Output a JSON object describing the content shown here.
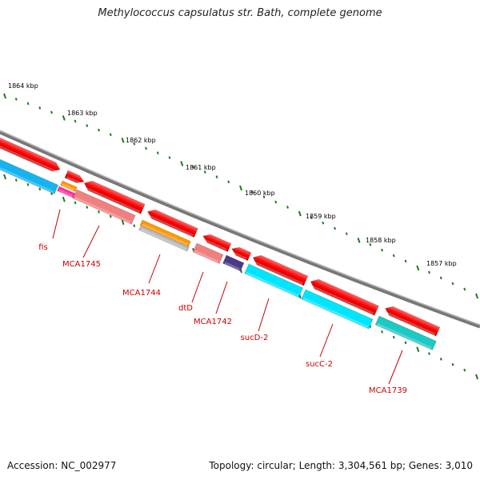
{
  "title": "Methylococcus capsulatus str. Bath, complete genome",
  "footer": {
    "accession": "Accession: NC_002977",
    "summary": "Topology: circular; Length: 3,304,561 bp; Genes: 3,010"
  },
  "colors": {
    "backbone": "#8c8c8c",
    "tick": "#1e7a1e",
    "tick_label": "#000000",
    "gene_label": "#cc0000",
    "leader": "#cc0000"
  },
  "ticks": [
    "1864 kbp",
    "1863 kbp",
    "1862 kbp",
    "1861 kbp",
    "1860 kbp",
    "1859 kbp",
    "1858 kbp",
    "1857 kbp"
  ],
  "gene_labels": [
    "fis",
    "MCA1745",
    "MCA1744",
    "dtD",
    "MCA1742",
    "sucD-2",
    "sucC-2",
    "MCA1739"
  ],
  "tracks": {
    "cds": {
      "name": "CDS track",
      "color": "#ff0000"
    },
    "features": [
      {
        "name": "fis",
        "color": "#ff2ea0"
      },
      {
        "name": "MCA1745",
        "color": "#f08080"
      },
      {
        "name": "MCA1744 upper",
        "color": "#ff9900"
      },
      {
        "name": "MCA1744 lower",
        "color": "#b8b8b8"
      },
      {
        "name": "dtD",
        "color": "#f08080"
      },
      {
        "name": "MCA1742",
        "color": "#4b3a8a"
      },
      {
        "name": "sucD-2",
        "color": "#00e5ff"
      },
      {
        "name": "sucC-2",
        "color": "#00e5ff"
      },
      {
        "name": "MCA1739",
        "color": "#1cc9c4"
      }
    ]
  }
}
